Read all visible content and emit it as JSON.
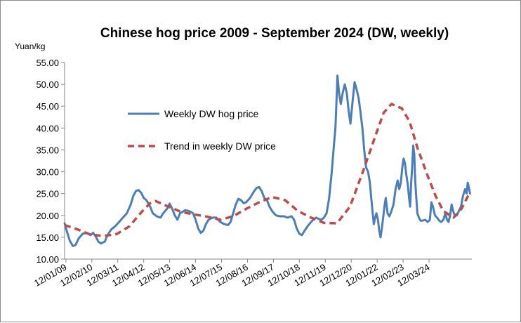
{
  "chart_data": {
    "type": "line",
    "title": "Chinese hog price 2009 - September 2024 (DW, weekly)",
    "ylabel": "Yuan/kg",
    "xlabel": "",
    "ylim": [
      10,
      55
    ],
    "y_ticks": [
      "55.00",
      "50.00",
      "45.00",
      "40.00",
      "35.00",
      "30.00",
      "25.00",
      "20.00",
      "15.00",
      "10.00"
    ],
    "x_ticks": [
      "12/01/09",
      "12/02/10",
      "12/03/11",
      "12/04/12",
      "12/05/13",
      "12/06/14",
      "12/07/15",
      "12/08/16",
      "12/09/17",
      "12/10/18",
      "12/11/19",
      "12/12/20",
      "12/01/22",
      "12/02/23",
      "12/03/24"
    ],
    "x_unit": "years since 12 Jan 2009",
    "grid": false,
    "legend": "upper-left inside plot",
    "series": [
      {
        "name": "Weekly DW hog price",
        "color": "#4a7ebb",
        "style": "solid",
        "points": [
          [
            0.0,
            18.2
          ],
          [
            0.08,
            16.5
          ],
          [
            0.2,
            14.2
          ],
          [
            0.32,
            13.0
          ],
          [
            0.42,
            13.2
          ],
          [
            0.55,
            14.8
          ],
          [
            0.7,
            15.8
          ],
          [
            0.85,
            16.0
          ],
          [
            1.0,
            15.5
          ],
          [
            1.1,
            16.0
          ],
          [
            1.2,
            15.2
          ],
          [
            1.3,
            14.0
          ],
          [
            1.4,
            13.6
          ],
          [
            1.55,
            14.0
          ],
          [
            1.65,
            15.5
          ],
          [
            1.8,
            16.8
          ],
          [
            1.95,
            17.5
          ],
          [
            2.1,
            18.5
          ],
          [
            2.25,
            19.5
          ],
          [
            2.4,
            20.5
          ],
          [
            2.55,
            22.5
          ],
          [
            2.65,
            24.5
          ],
          [
            2.75,
            25.6
          ],
          [
            2.85,
            25.8
          ],
          [
            2.95,
            25.2
          ],
          [
            3.05,
            24.0
          ],
          [
            3.15,
            23.5
          ],
          [
            3.3,
            22.0
          ],
          [
            3.4,
            20.5
          ],
          [
            3.55,
            19.8
          ],
          [
            3.7,
            19.5
          ],
          [
            3.8,
            20.5
          ],
          [
            3.95,
            21.5
          ],
          [
            4.05,
            22.7
          ],
          [
            4.15,
            21.5
          ],
          [
            4.25,
            20.0
          ],
          [
            4.35,
            19.0
          ],
          [
            4.45,
            20.5
          ],
          [
            4.55,
            20.8
          ],
          [
            4.65,
            21.2
          ],
          [
            4.8,
            21.0
          ],
          [
            4.95,
            20.5
          ],
          [
            5.05,
            19.0
          ],
          [
            5.15,
            17.0
          ],
          [
            5.25,
            16.0
          ],
          [
            5.35,
            16.5
          ],
          [
            5.45,
            18.0
          ],
          [
            5.55,
            19.0
          ],
          [
            5.7,
            19.5
          ],
          [
            5.85,
            19.5
          ],
          [
            6.0,
            18.5
          ],
          [
            6.15,
            18.0
          ],
          [
            6.3,
            17.8
          ],
          [
            6.4,
            18.5
          ],
          [
            6.5,
            20.5
          ],
          [
            6.6,
            22.5
          ],
          [
            6.7,
            23.8
          ],
          [
            6.8,
            23.5
          ],
          [
            6.9,
            22.8
          ],
          [
            7.0,
            23.0
          ],
          [
            7.15,
            24.0
          ],
          [
            7.3,
            25.5
          ],
          [
            7.4,
            26.3
          ],
          [
            7.5,
            26.5
          ],
          [
            7.6,
            25.5
          ],
          [
            7.7,
            24.0
          ],
          [
            7.8,
            23.5
          ],
          [
            7.9,
            22.0
          ],
          [
            8.0,
            21.0
          ],
          [
            8.15,
            20.0
          ],
          [
            8.3,
            19.8
          ],
          [
            8.45,
            19.8
          ],
          [
            8.6,
            19.5
          ],
          [
            8.75,
            19.8
          ],
          [
            8.85,
            19.0
          ],
          [
            8.95,
            17.0
          ],
          [
            9.05,
            15.8
          ],
          [
            9.15,
            15.5
          ],
          [
            9.25,
            16.5
          ],
          [
            9.4,
            17.8
          ],
          [
            9.55,
            18.8
          ],
          [
            9.7,
            19.5
          ],
          [
            9.8,
            19.2
          ],
          [
            9.9,
            19.0
          ],
          [
            10.0,
            19.5
          ],
          [
            10.1,
            20.5
          ],
          [
            10.2,
            24.0
          ],
          [
            10.3,
            30.0
          ],
          [
            10.38,
            36.0
          ],
          [
            10.44,
            40.0
          ],
          [
            10.48,
            46.0
          ],
          [
            10.52,
            52.0
          ],
          [
            10.58,
            48.0
          ],
          [
            10.65,
            45.5
          ],
          [
            10.72,
            48.0
          ],
          [
            10.8,
            50.0
          ],
          [
            10.88,
            48.0
          ],
          [
            10.95,
            44.0
          ],
          [
            11.02,
            41.0
          ],
          [
            11.1,
            46.0
          ],
          [
            11.18,
            50.5
          ],
          [
            11.25,
            49.0
          ],
          [
            11.33,
            47.0
          ],
          [
            11.4,
            44.0
          ],
          [
            11.48,
            40.0
          ],
          [
            11.55,
            35.0
          ],
          [
            11.62,
            31.0
          ],
          [
            11.7,
            30.0
          ],
          [
            11.77,
            27.5
          ],
          [
            11.82,
            24.0
          ],
          [
            11.87,
            21.0
          ],
          [
            11.92,
            18.0
          ],
          [
            11.97,
            19.5
          ],
          [
            12.02,
            20.5
          ],
          [
            12.08,
            19.0
          ],
          [
            12.13,
            16.5
          ],
          [
            12.18,
            15.0
          ],
          [
            12.23,
            17.0
          ],
          [
            12.28,
            19.5
          ],
          [
            12.33,
            22.0
          ],
          [
            12.38,
            24.0
          ],
          [
            12.45,
            20.5
          ],
          [
            12.52,
            19.8
          ],
          [
            12.6,
            21.0
          ],
          [
            12.68,
            22.5
          ],
          [
            12.76,
            26.0
          ],
          [
            12.84,
            28.0
          ],
          [
            12.9,
            26.0
          ],
          [
            12.96,
            27.5
          ],
          [
            13.02,
            31.0
          ],
          [
            13.07,
            33.0
          ],
          [
            13.12,
            32.0
          ],
          [
            13.17,
            29.5
          ],
          [
            13.23,
            27.0
          ],
          [
            13.28,
            24.0
          ],
          [
            13.32,
            22.0
          ],
          [
            13.36,
            27.5
          ],
          [
            13.4,
            31.0
          ],
          [
            13.44,
            36.0
          ],
          [
            13.48,
            34.0
          ],
          [
            13.52,
            27.5
          ],
          [
            13.56,
            24.0
          ],
          [
            13.6,
            20.5
          ],
          [
            13.66,
            19.5
          ],
          [
            13.72,
            18.8
          ],
          [
            13.8,
            18.8
          ],
          [
            13.9,
            19.0
          ],
          [
            14.0,
            18.5
          ],
          [
            14.08,
            19.0
          ],
          [
            14.14,
            23.0
          ],
          [
            14.2,
            22.0
          ],
          [
            14.28,
            20.0
          ],
          [
            14.36,
            19.5
          ],
          [
            14.44,
            18.8
          ],
          [
            14.52,
            18.5
          ],
          [
            14.6,
            19.0
          ],
          [
            14.68,
            20.5
          ],
          [
            14.74,
            19.0
          ],
          [
            14.8,
            18.5
          ],
          [
            14.86,
            20.0
          ],
          [
            14.92,
            22.5
          ],
          [
            14.98,
            21.0
          ],
          [
            15.04,
            20.0
          ],
          [
            15.12,
            20.0
          ],
          [
            15.2,
            21.0
          ],
          [
            15.28,
            22.0
          ],
          [
            15.36,
            24.5
          ],
          [
            15.44,
            26.0
          ],
          [
            15.5,
            25.0
          ],
          [
            15.54,
            27.5
          ],
          [
            15.58,
            26.5
          ],
          [
            15.63,
            25.0
          ]
        ]
      },
      {
        "name": "Trend in weekly DW price",
        "color": "#be4b48",
        "style": "dashed",
        "points": [
          [
            0.0,
            17.8
          ],
          [
            0.5,
            16.8
          ],
          [
            1.0,
            15.6
          ],
          [
            1.5,
            15.3
          ],
          [
            2.0,
            15.7
          ],
          [
            2.5,
            17.5
          ],
          [
            3.0,
            21.0
          ],
          [
            3.3,
            22.8
          ],
          [
            3.5,
            23.3
          ],
          [
            4.0,
            22.0
          ],
          [
            4.5,
            20.8
          ],
          [
            5.0,
            20.2
          ],
          [
            5.5,
            19.7
          ],
          [
            6.0,
            19.0
          ],
          [
            6.5,
            19.8
          ],
          [
            7.0,
            21.5
          ],
          [
            7.5,
            23.0
          ],
          [
            8.0,
            24.2
          ],
          [
            8.5,
            23.5
          ],
          [
            9.0,
            21.0
          ],
          [
            9.5,
            19.5
          ],
          [
            10.0,
            18.3
          ],
          [
            10.5,
            18.2
          ],
          [
            11.0,
            22.0
          ],
          [
            11.5,
            30.0
          ],
          [
            12.0,
            38.5
          ],
          [
            12.3,
            43.5
          ],
          [
            12.6,
            45.5
          ],
          [
            13.0,
            44.5
          ],
          [
            13.3,
            41.5
          ],
          [
            13.6,
            35.5
          ],
          [
            14.0,
            29.0
          ],
          [
            14.3,
            24.5
          ],
          [
            14.6,
            21.0
          ],
          [
            15.0,
            19.5
          ],
          [
            15.3,
            21.5
          ],
          [
            15.6,
            25.0
          ]
        ]
      }
    ]
  }
}
